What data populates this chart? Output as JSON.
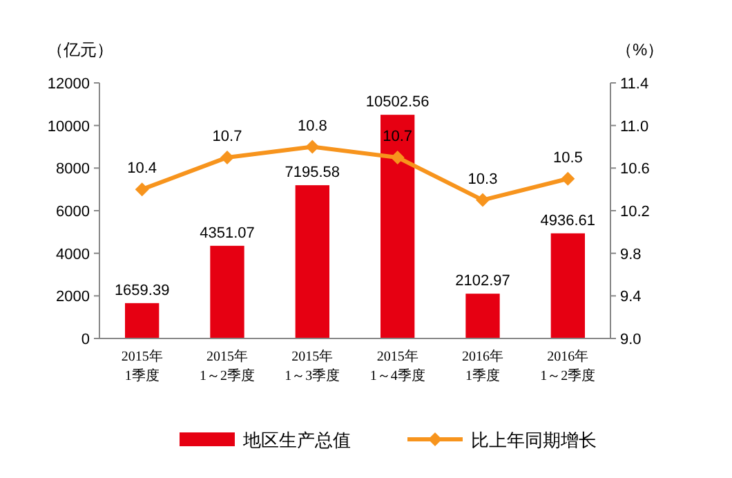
{
  "chart_data": {
    "type": "bar",
    "ylabel": "（亿元）",
    "y2label": "（%）",
    "categories": [
      "2015年\n1季度",
      "2015年\n1～2季度",
      "2015年\n1～3季度",
      "2015年\n1～4季度",
      "2016年\n1季度",
      "2016年\n1～2季度"
    ],
    "series": [
      {
        "name": "地区生产总值",
        "color": "#e60012",
        "values": [
          1659.39,
          4351.07,
          7195.58,
          10502.56,
          2102.97,
          4936.61
        ]
      },
      {
        "name": "比上年同期增长",
        "type": "line",
        "axis": "y2",
        "color": "#f7941d",
        "marker": "diamond",
        "values": [
          10.4,
          10.7,
          10.8,
          10.7,
          10.3,
          10.5
        ]
      }
    ],
    "ylim": [
      0,
      12000
    ],
    "yticks": [
      0,
      2000,
      4000,
      6000,
      8000,
      10000,
      12000
    ],
    "y2lim": [
      9,
      11.4
    ],
    "y2ticks": [
      {
        "value": 9,
        "label": "9.0"
      },
      9.4,
      9.8,
      10.2,
      10.6,
      {
        "value": 11,
        "label": "11.0"
      },
      11.4
    ],
    "data_labels": true,
    "legend": "bottom",
    "grid": false
  }
}
